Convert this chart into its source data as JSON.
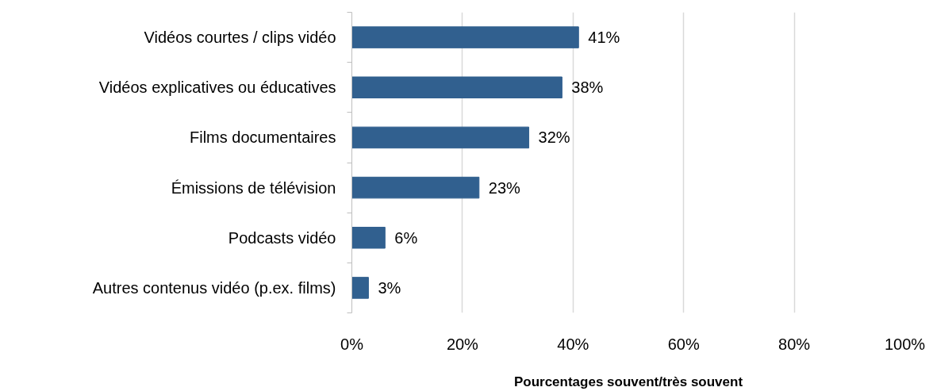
{
  "chart_data": {
    "type": "bar",
    "orientation": "horizontal",
    "xlabel": "Pourcentages souvent/très souvent",
    "categories": [
      "Vidéos courtes / clips vidéo",
      "Vidéos explicatives ou éducatives",
      "Films documentaires",
      "Émissions de télévision",
      "Podcasts vidéo",
      "Autres contenus vidéo (p.ex. films)"
    ],
    "values": [
      41,
      38,
      32,
      23,
      6,
      3
    ],
    "value_labels": [
      "41%",
      "38%",
      "32%",
      "23%",
      "6%",
      "3%"
    ],
    "color": "#31608f",
    "xlim": [
      0,
      100
    ],
    "xticks": [
      {
        "value": 0,
        "label": "0%"
      },
      {
        "value": 20,
        "label": "20%"
      },
      {
        "value": 40,
        "label": "40%"
      },
      {
        "value": 60,
        "label": "60%"
      },
      {
        "value": 80,
        "label": "80%"
      },
      {
        "value": 100,
        "label": "100%"
      }
    ],
    "grid": "x"
  }
}
